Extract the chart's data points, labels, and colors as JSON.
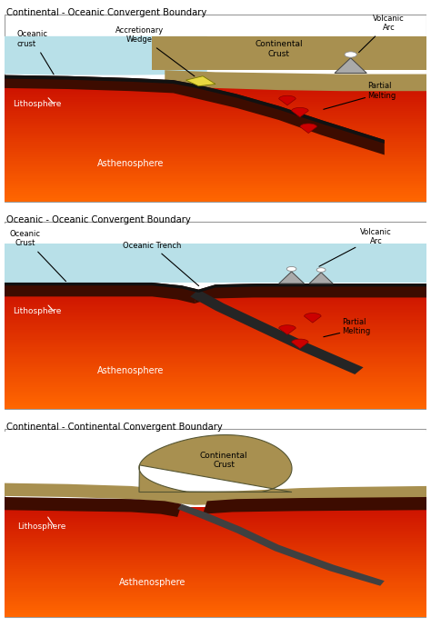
{
  "bg_color": "#ffffff",
  "asth_top_color": "#ff6600",
  "asth_bot_color": "#cc1100",
  "lith_color": "#3d0c00",
  "oceanic_crust_color": "#1a1a1a",
  "continental_crust_color": "#a89050",
  "ocean_water_color": "#b8e0e8",
  "accretionary_wedge_color": "#e8d840",
  "volcano_color": "#aaaaaa",
  "magma_color": "#cc0000",
  "slab_color": "#252525",
  "text_color": "#000000",
  "panel1_title": "Continental - Oceanic Convergent Boundary",
  "panel2_title": "Oceanic - Oceanic Convergent Boundary",
  "panel3_title": "Continental - Continental Convergent Boundary"
}
